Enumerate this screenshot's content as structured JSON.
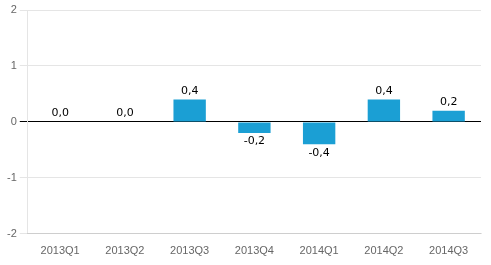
{
  "chart_data": {
    "type": "bar",
    "categories": [
      "2013Q1",
      "2013Q2",
      "2013Q3",
      "2013Q4",
      "2014Q1",
      "2014Q2",
      "2014Q3"
    ],
    "values": [
      0.0,
      0.0,
      0.4,
      -0.2,
      -0.4,
      0.4,
      0.2
    ],
    "value_labels": [
      "0,0",
      "0,0",
      "0,4",
      "-0,2",
      "-0,4",
      "0,4",
      "0,2"
    ],
    "color": "#1b9fd4",
    "ylim": [
      -2,
      2
    ],
    "yticks": [
      -2,
      -1,
      0,
      1,
      2
    ],
    "grid": true,
    "data_labels": true
  }
}
